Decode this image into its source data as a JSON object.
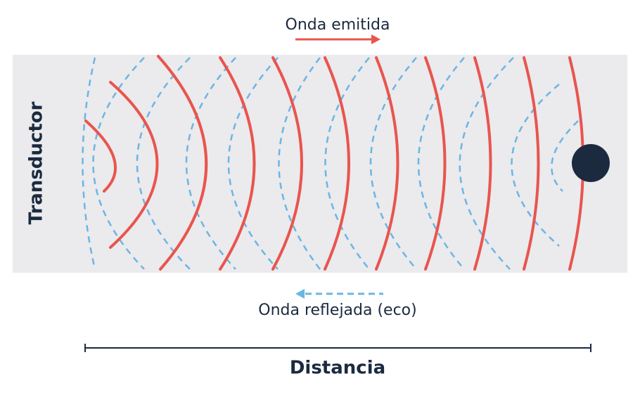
{
  "labels": {
    "emitted": "Onda emitida",
    "reflected": "Onda reflejada (eco)",
    "transducer": "Transductor",
    "distance": "Distancia"
  }
}
